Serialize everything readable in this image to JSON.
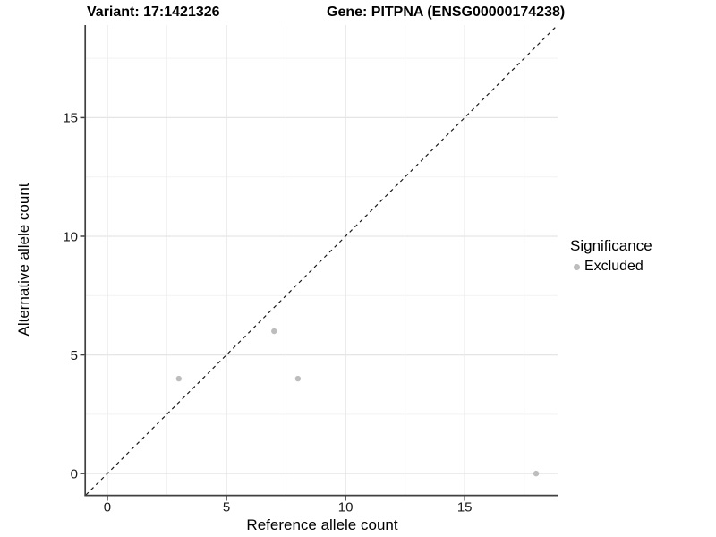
{
  "header": {
    "variant_title": "Variant: 17:1421326",
    "gene_title": "Gene: PITPNA (ENSG00000174238)"
  },
  "chart_data": {
    "type": "scatter",
    "xlabel": "Reference allele count",
    "ylabel": "Alternative allele count",
    "xlim": [
      -0.9,
      18.9
    ],
    "ylim": [
      -0.9,
      18.9
    ],
    "xticks": [
      0,
      5,
      10,
      15
    ],
    "yticks": [
      0,
      5,
      10,
      15
    ],
    "minor_xticks": [
      2.5,
      7.5,
      12.5,
      17.5
    ],
    "minor_yticks": [
      2.5,
      7.5,
      12.5,
      17.5
    ],
    "grid": "major+minor",
    "identity_line": {
      "equation": "y = x",
      "style": "dashed",
      "color": "#1a1a1a"
    },
    "series": [
      {
        "name": "Excluded",
        "color": "#bdbdbd",
        "points": [
          [
            3,
            4
          ],
          [
            7,
            6
          ],
          [
            8,
            4
          ],
          [
            18,
            0
          ]
        ]
      }
    ],
    "legend": {
      "title": "Significance",
      "position": "right",
      "items": [
        {
          "label": "Excluded",
          "color": "#bdbdbd"
        }
      ]
    }
  },
  "colors": {
    "background": "#ffffff",
    "grid_major": "#e5e5e5",
    "grid_minor": "#f2f2f2",
    "axis": "#404040",
    "tick_label": "#1a1a1a",
    "point": "#bdbdbd"
  }
}
